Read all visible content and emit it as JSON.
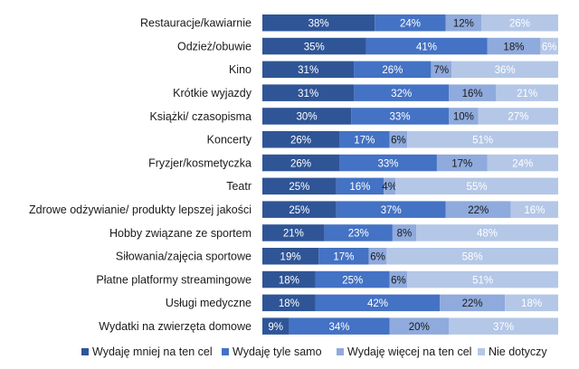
{
  "chart_data": {
    "type": "bar",
    "orientation": "horizontal",
    "stacked": true,
    "percent_stacked": true,
    "categories": [
      "Restauracje/kawiarnie",
      "Odzież/obuwie",
      "Kino",
      "Krótkie wyjazdy",
      "Książki/ czasopisma",
      "Koncerty",
      "Fryzjer/kosmetyczka",
      "Teatr",
      "Zdrowe odżywianie/ produkty lepszej jakości",
      "Hobby związane ze sportem",
      "Siłowania/zajęcia sportowe",
      "Płatne platformy streamingowe",
      "Usługi medyczne",
      "Wydatki na zwierzęta domowe"
    ],
    "series": [
      {
        "name": "Wydaję mniej  na ten cel",
        "color": "#2f5597",
        "text_color": "#ffffff",
        "values": [
          38,
          35,
          31,
          31,
          30,
          26,
          26,
          25,
          25,
          21,
          19,
          18,
          18,
          9
        ]
      },
      {
        "name": "Wydaję tyle samo",
        "color": "#4472c4",
        "text_color": "#ffffff",
        "values": [
          24,
          41,
          26,
          32,
          33,
          17,
          33,
          16,
          37,
          23,
          17,
          25,
          42,
          34
        ]
      },
      {
        "name": "Wydaję więcej na ten cel",
        "color": "#8faadc",
        "text_color": "#1a1a1a",
        "values": [
          12,
          18,
          7,
          16,
          10,
          6,
          17,
          4,
          22,
          8,
          6,
          6,
          22,
          20
        ]
      },
      {
        "name": "Nie dotyczy",
        "color": "#b4c7e7",
        "text_color": "#ffffff",
        "values": [
          26,
          6,
          36,
          21,
          27,
          51,
          24,
          55,
          16,
          48,
          58,
          51,
          18,
          37
        ]
      }
    ],
    "value_suffix": "%",
    "legend_position": "bottom",
    "grid": false
  }
}
